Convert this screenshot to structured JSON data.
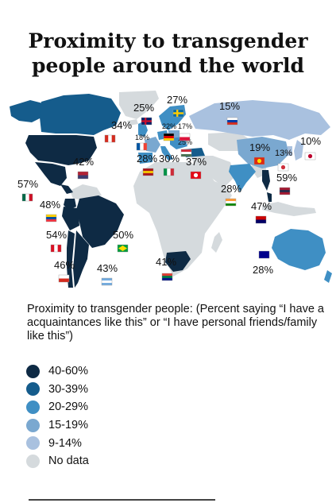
{
  "header": {
    "title_line1": "Proximity to transgender",
    "title_line2": "people around the world"
  },
  "subtitle": "Proximity to transgender people: (Percent saying “I have a acquaintances like this” or “I have personal friends/family like this”)",
  "colors": {
    "band_40_60": "#0e2a44",
    "band_30_39": "#155c8c",
    "band_20_29": "#3f8fc4",
    "band_15_19": "#7aa8d0",
    "band_9_14": "#a9c1df",
    "no_data": "#d5dadd"
  },
  "legend": [
    {
      "label": "40-60%",
      "color_key": "band_40_60"
    },
    {
      "label": "30-39%",
      "color_key": "band_30_39"
    },
    {
      "label": "20-29%",
      "color_key": "band_20_29"
    },
    {
      "label": "15-19%",
      "color_key": "band_15_19"
    },
    {
      "label": "9-14%",
      "color_key": "band_9_14"
    },
    {
      "label": "No data",
      "color_key": "no_data"
    }
  ],
  "chart_data": {
    "type": "choropleth map",
    "title": "Proximity to transgender people around the world",
    "unit": "percent",
    "countries": [
      {
        "country": "Canada",
        "flag": "canada-flag",
        "value": 34,
        "label": "34%"
      },
      {
        "country": "United States",
        "flag": "usa-flag",
        "value": 42,
        "label": "42%"
      },
      {
        "country": "Mexico",
        "flag": "mexico-flag",
        "value": 57,
        "label": "57%"
      },
      {
        "country": "Ecuador",
        "flag": "ecuador-flag",
        "value": 48,
        "label": "48%"
      },
      {
        "country": "Peru",
        "flag": "peru-flag",
        "value": 54,
        "label": "54%"
      },
      {
        "country": "Brazil",
        "flag": "brazil-flag",
        "value": 50,
        "label": "50%"
      },
      {
        "country": "Chile",
        "flag": "chile-flag",
        "value": 46,
        "label": "46%"
      },
      {
        "country": "Argentina",
        "flag": "argentina-flag",
        "value": 43,
        "label": "43%"
      },
      {
        "country": "United Kingdom",
        "flag": "uk-flag",
        "value": 25,
        "label": "25%"
      },
      {
        "country": "Sweden",
        "flag": "sweden-flag",
        "value": 27,
        "label": "27%"
      },
      {
        "country": "Russia",
        "flag": "russia-flag",
        "value": 15,
        "label": "15%"
      },
      {
        "country": "France",
        "flag": "france-flag",
        "value": 18,
        "label": "18%"
      },
      {
        "country": "Germany",
        "flag": "germany-flag",
        "value": 22,
        "label": "22%"
      },
      {
        "country": "Poland",
        "flag": "poland-flag",
        "value": 17,
        "label": "17%"
      },
      {
        "country": "Hungary",
        "flag": "hungary-flag",
        "value": 25,
        "label": "25%"
      },
      {
        "country": "Spain",
        "flag": "spain-flag",
        "value": 28,
        "label": "28%"
      },
      {
        "country": "Italy",
        "flag": "italy-flag",
        "value": 30,
        "label": "30%"
      },
      {
        "country": "Turkey",
        "flag": "turkey-flag",
        "value": 37,
        "label": "37%"
      },
      {
        "country": "China",
        "flag": "china-flag",
        "value": 19,
        "label": "19%"
      },
      {
        "country": "South Korea",
        "flag": "south-korea-flag",
        "value": 13,
        "label": "13%"
      },
      {
        "country": "Japan",
        "flag": "japan-flag",
        "value": 10,
        "label": "10%"
      },
      {
        "country": "India",
        "flag": "india-flag",
        "value": 28,
        "label": "28%"
      },
      {
        "country": "Thailand",
        "flag": "thailand-flag",
        "value": 59,
        "label": "59%"
      },
      {
        "country": "Malaysia",
        "flag": "malaysia-flag",
        "value": 47,
        "label": "47%"
      },
      {
        "country": "South Africa",
        "flag": "south-africa-flag",
        "value": 41,
        "label": "41%"
      },
      {
        "country": "Australia",
        "flag": "australia-flag",
        "value": 28,
        "label": "28%"
      }
    ]
  }
}
